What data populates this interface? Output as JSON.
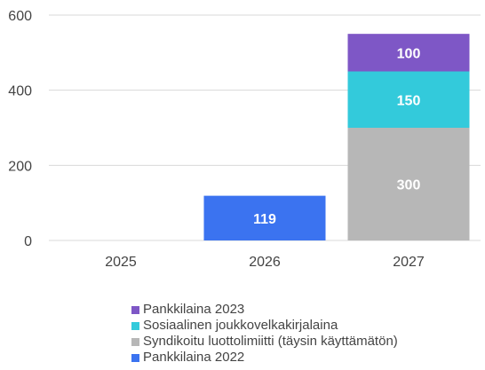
{
  "chart_data": {
    "type": "bar",
    "stacked": true,
    "categories": [
      "2025",
      "2026",
      "2027"
    ],
    "ylim": [
      0,
      600
    ],
    "yticks": [
      0,
      200,
      400,
      600
    ],
    "grid": true,
    "legend_position": "bottom",
    "series": [
      {
        "name": "Pankkilaina 2022",
        "color": "#3B73F0",
        "values": [
          0,
          119,
          0
        ]
      },
      {
        "name": "Syndikoitu luottolimiitti (täysin käyttämätön)",
        "color": "#B7B7B7",
        "values": [
          0,
          0,
          300
        ]
      },
      {
        "name": "Sosiaalinen joukkovelkakirjalaina",
        "color": "#33CADB",
        "values": [
          0,
          0,
          150
        ]
      },
      {
        "name": "Pankkilaina 2023",
        "color": "#7E57C6",
        "values": [
          0,
          0,
          100
        ]
      }
    ],
    "legend_order": [
      "Pankkilaina 2023",
      "Sosiaalinen joukkovelkakirjalaina",
      "Syndikoitu luottolimiitti (täysin käyttämätön)",
      "Pankkilaina 2022"
    ]
  }
}
